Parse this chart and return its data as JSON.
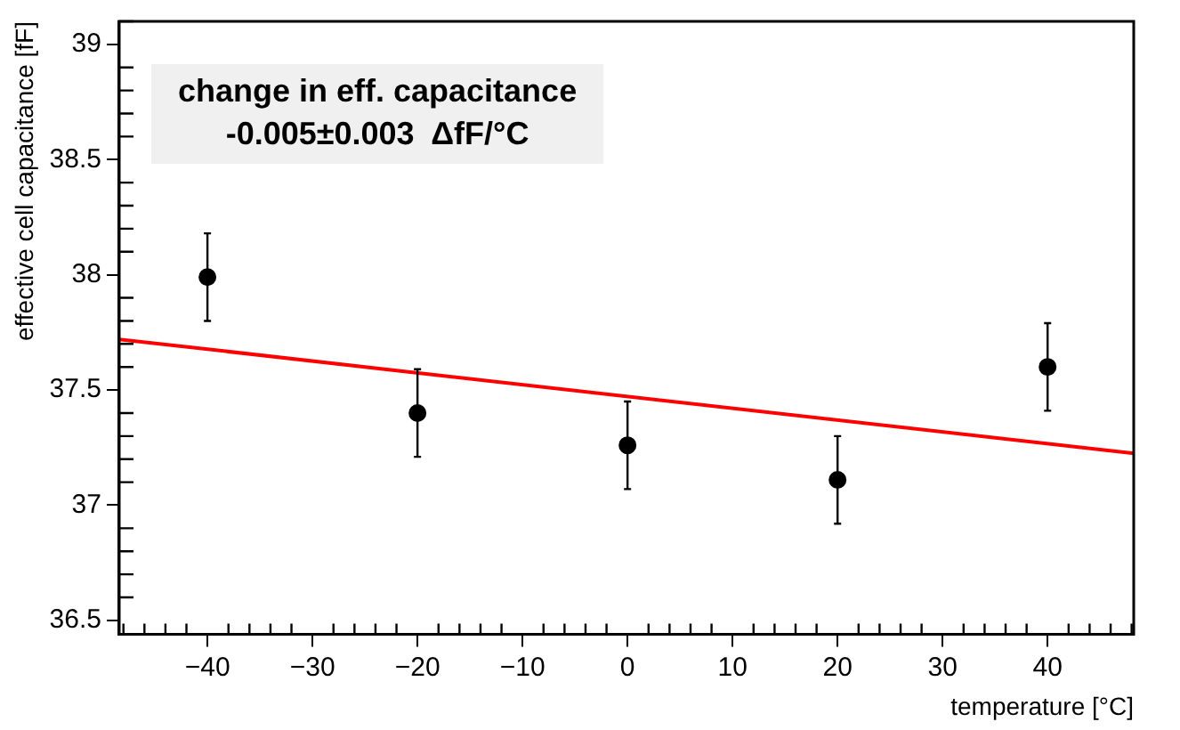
{
  "chart_data": {
    "type": "scatter",
    "xlabel": "temperature [°C]",
    "ylabel": "effective cell capacitance [fF]",
    "annotations": [
      "change in eff. capacitance",
      "-0.005±0.003  ΔfF/°C"
    ],
    "x": [
      -40,
      -20,
      0,
      20,
      40
    ],
    "series": [
      {
        "type": "scatter",
        "color": "#000000",
        "marker": "circle",
        "values": [
          37.99,
          37.4,
          37.26,
          37.11,
          37.6
        ],
        "errors": [
          0.19,
          0.19,
          0.19,
          0.19,
          0.19
        ]
      },
      {
        "type": "line",
        "color": "#ff0000",
        "marker": "none",
        "x": [
          -48.4,
          48.2
        ],
        "values": [
          37.72,
          37.225
        ]
      }
    ],
    "xlim": [
      -48.4,
      48.2
    ],
    "xticks": [
      {
        "value": -40,
        "label": "−40"
      },
      {
        "value": -30,
        "label": "−30"
      },
      {
        "value": -20,
        "label": "−20"
      },
      {
        "value": -10,
        "label": "−10"
      },
      0,
      10,
      20,
      30,
      40
    ],
    "ylim": [
      36.44,
      39.1
    ],
    "yticks": [
      36.5,
      37,
      37.5,
      38,
      38.5,
      39
    ],
    "grid": false,
    "legend": false
  }
}
